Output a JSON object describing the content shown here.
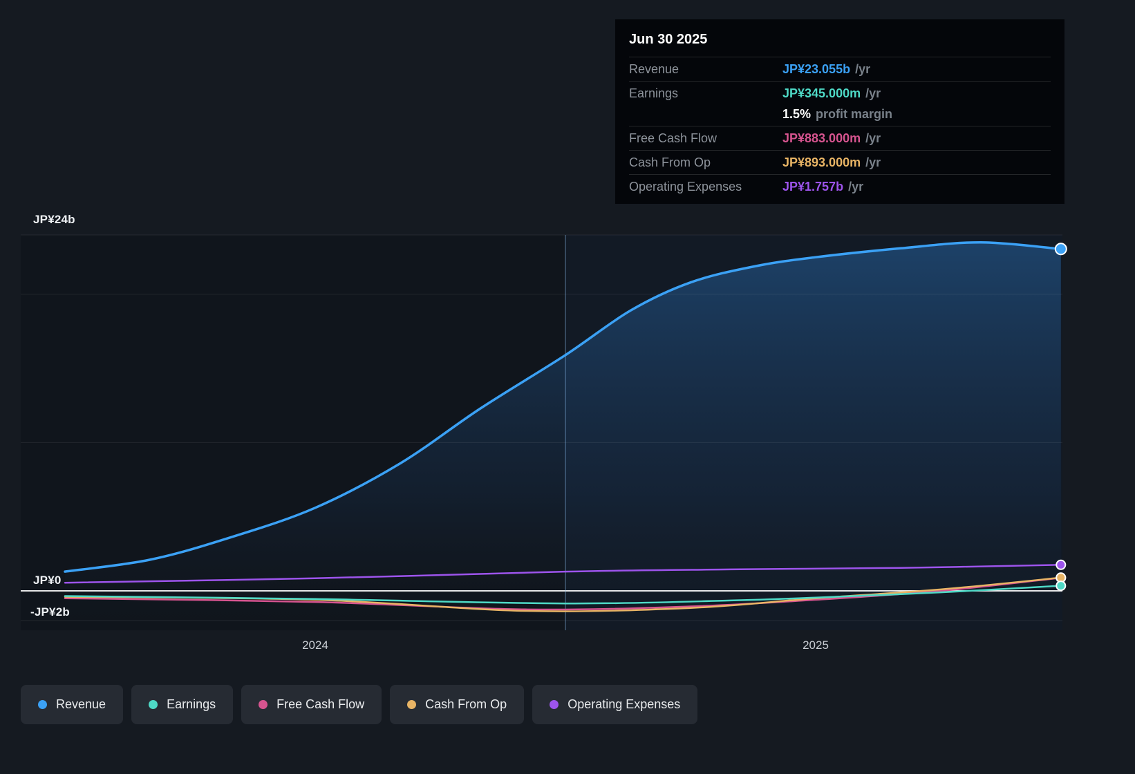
{
  "colors": {
    "background": "#151a21",
    "tooltip_background": "#04060a",
    "legend_pill_background": "#262b33",
    "zero_line": "#ffffff",
    "grid_line": "#2a3038",
    "revenue": "#3ba1f5",
    "earnings": "#4ed9c6",
    "free_cash_flow": "#d6548f",
    "cash_from_op": "#e8b465",
    "operating_expenses": "#9d54ec"
  },
  "tooltip": {
    "date": "Jun 30 2025",
    "rows": [
      {
        "label": "Revenue",
        "value": "JP¥23.055b",
        "suffix": "/yr",
        "color": "#3ba1f5"
      },
      {
        "label": "Earnings",
        "value": "JP¥345.000m",
        "suffix": "/yr",
        "color": "#4ed9c6"
      },
      {
        "label": "",
        "value": "1.5%",
        "suffix": "profit margin",
        "color": "#ffffff"
      },
      {
        "label": "Free Cash Flow",
        "value": "JP¥883.000m",
        "suffix": "/yr",
        "color": "#d6548f"
      },
      {
        "label": "Cash From Op",
        "value": "JP¥893.000m",
        "suffix": "/yr",
        "color": "#e8b465"
      },
      {
        "label": "Operating Expenses",
        "value": "JP¥1.757b",
        "suffix": "/yr",
        "color": "#9d54ec"
      }
    ]
  },
  "legend": [
    {
      "label": "Revenue",
      "color": "#3ba1f5"
    },
    {
      "label": "Earnings",
      "color": "#4ed9c6"
    },
    {
      "label": "Free Cash Flow",
      "color": "#d6548f"
    },
    {
      "label": "Cash From Op",
      "color": "#e8b465"
    },
    {
      "label": "Operating Expenses",
      "color": "#9d54ec"
    }
  ],
  "chart_data": {
    "type": "line",
    "title": "",
    "unit": "JP¥ billions per year",
    "x_axis": {
      "ticks": [
        2024,
        2025
      ],
      "tick_labels": [
        "2024",
        "2025"
      ],
      "range": [
        2023.41,
        2025.5
      ]
    },
    "y_axis": {
      "ticks": [
        24,
        0,
        -2
      ],
      "tick_labels": [
        "JP¥24b",
        "JP¥0",
        "-JP¥2b"
      ],
      "gridlines": [
        24,
        20,
        10,
        -2
      ],
      "range": [
        -2.66,
        24
      ]
    },
    "divider_x": 2024.5,
    "legend_position": "bottom",
    "series": [
      {
        "name": "Revenue",
        "color": "#3ba1f5",
        "area": true,
        "latest_label": "JP¥23.055b /yr",
        "x": [
          2023.5,
          2023.67,
          2023.83,
          2024.0,
          2024.17,
          2024.33,
          2024.5,
          2024.63,
          2024.75,
          2024.88,
          2025.0,
          2025.17,
          2025.33,
          2025.49
        ],
        "values": [
          1.3,
          2.1,
          3.6,
          5.6,
          8.6,
          12.3,
          15.9,
          18.9,
          20.8,
          21.9,
          22.5,
          23.1,
          23.5,
          23.055
        ]
      },
      {
        "name": "Earnings",
        "color": "#4ed9c6",
        "latest_label": "JP¥345.000m /yr",
        "x": [
          2023.5,
          2024.0,
          2024.5,
          2024.83,
          2025.0,
          2025.25,
          2025.49
        ],
        "values": [
          -0.35,
          -0.55,
          -0.85,
          -0.65,
          -0.45,
          -0.1,
          0.345
        ]
      },
      {
        "name": "Free Cash Flow",
        "color": "#d6548f",
        "latest_label": "JP¥883.000m /yr",
        "x": [
          2023.5,
          2024.0,
          2024.42,
          2024.75,
          2025.0,
          2025.25,
          2025.49
        ],
        "values": [
          -0.5,
          -0.75,
          -1.25,
          -1.05,
          -0.6,
          0.0,
          0.883
        ]
      },
      {
        "name": "Cash From Op",
        "color": "#e8b465",
        "latest_label": "JP¥893.000m /yr",
        "x": [
          2023.5,
          2024.0,
          2024.42,
          2024.75,
          2025.0,
          2025.25,
          2025.49
        ],
        "values": [
          -0.4,
          -0.6,
          -1.35,
          -1.15,
          -0.5,
          0.1,
          0.893
        ]
      },
      {
        "name": "Operating Expenses",
        "color": "#9d54ec",
        "latest_label": "JP¥1.757b /yr",
        "x": [
          2023.5,
          2024.0,
          2024.5,
          2024.83,
          2025.17,
          2025.49
        ],
        "values": [
          0.55,
          0.85,
          1.3,
          1.45,
          1.55,
          1.757
        ]
      }
    ]
  }
}
